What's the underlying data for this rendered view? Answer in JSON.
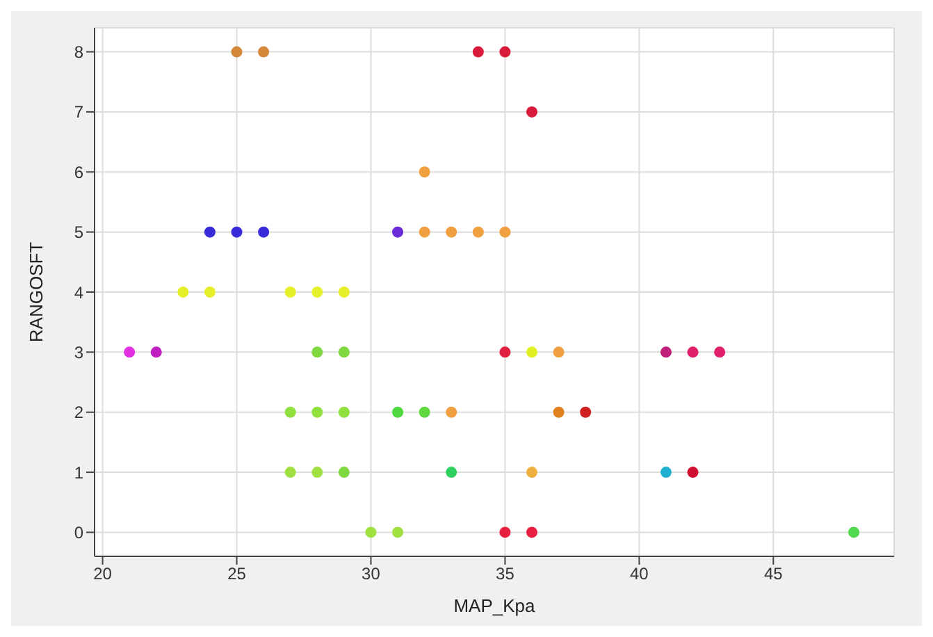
{
  "chart_data": {
    "type": "scatter",
    "xlabel": "MAP_Kpa",
    "ylabel": "RANGOSFT",
    "x": [
      25,
      26,
      34,
      35,
      36,
      32,
      24,
      25,
      26,
      31,
      32,
      33,
      34,
      35,
      23,
      24,
      27,
      28,
      29,
      21,
      22,
      28,
      29,
      35,
      36,
      37,
      41,
      42,
      43,
      27,
      28,
      29,
      31,
      32,
      33,
      37,
      38,
      27,
      28,
      29,
      33,
      36,
      41,
      42,
      30,
      31,
      35,
      36,
      48
    ],
    "values": [
      8,
      8,
      8,
      8,
      7,
      6,
      5,
      5,
      5,
      5,
      5,
      5,
      5,
      5,
      4,
      4,
      4,
      4,
      4,
      3,
      3,
      3,
      3,
      3,
      3,
      3,
      3,
      3,
      3,
      2,
      2,
      2,
      2,
      2,
      2,
      2,
      2,
      1,
      1,
      1,
      1,
      1,
      1,
      1,
      0,
      0,
      0,
      0,
      0
    ],
    "colors": [
      "#d4883a",
      "#d4883a",
      "#d81b3a",
      "#d81b3a",
      "#d81b3a",
      "#f0a040",
      "#3a2bd8",
      "#3a2bd8",
      "#3a2bd8",
      "#6a2bd8",
      "#f0a040",
      "#f0a040",
      "#f0a040",
      "#f0a040",
      "#e6f02a",
      "#e6f02a",
      "#e6f02a",
      "#e6f02a",
      "#e6f02a",
      "#e030e0",
      "#c020c0",
      "#80d840",
      "#80d840",
      "#e02040",
      "#e0f020",
      "#f0a040",
      "#c0207a",
      "#e0206a",
      "#e0206a",
      "#90e040",
      "#90e040",
      "#90e040",
      "#50d840",
      "#60d840",
      "#f0a040",
      "#e08020",
      "#d02020",
      "#a0e040",
      "#a0e040",
      "#80d840",
      "#30d060",
      "#f0b040",
      "#20b0d0",
      "#d01030",
      "#a0e040",
      "#a0e040",
      "#e82040",
      "#e82040",
      "#50d850"
    ],
    "xlim": [
      19.7,
      49.5
    ],
    "xticks": [
      20,
      25,
      30,
      35,
      40,
      45
    ],
    "ylim": [
      -0.4,
      8.4
    ],
    "yticks": [
      0,
      1,
      2,
      3,
      4,
      5,
      6,
      7,
      8
    ],
    "grid": true,
    "marker": "circle"
  }
}
